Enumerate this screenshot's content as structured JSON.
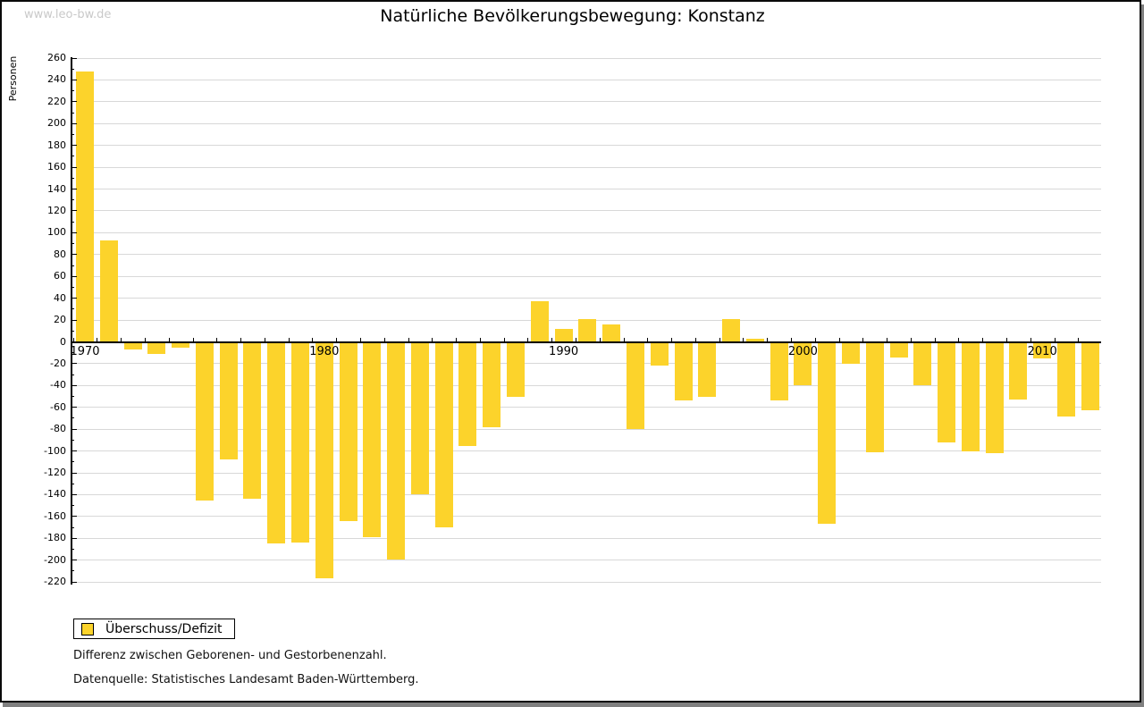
{
  "watermark": "www.leo-bw.de",
  "header": {
    "title": "Natürliche Bevölkerungsbewegung: Konstanz"
  },
  "y_axis": {
    "label": "Personen",
    "min": -220,
    "max": 260,
    "major_step": 20,
    "minor_step": 10
  },
  "x_axis": {
    "tick_labels": [
      "1970",
      "1980",
      "1990",
      "2000",
      "2010"
    ]
  },
  "legend": {
    "label": "Überschuss/Defizit"
  },
  "notes": [
    "Differenz zwischen Geborenen- und Gestorbenenzahl.",
    "Datenquelle: Statistisches Landesamt Baden-Württemberg."
  ],
  "colors": {
    "bar": "#fcd32b",
    "grid": "#d8d8d8",
    "axis": "#000000",
    "watermark": "#c9c9c9",
    "shadow": "#808080"
  },
  "chart_data": {
    "type": "bar",
    "title": "Natürliche Bevölkerungsbewegung: Konstanz",
    "xlabel": "",
    "ylabel": "Personen",
    "ylim": [
      -220,
      260
    ],
    "grid": true,
    "legend_position": "bottom-left",
    "series_name": "Überschuss/Defizit",
    "categories": [
      1970,
      1971,
      1972,
      1973,
      1974,
      1975,
      1976,
      1977,
      1978,
      1979,
      1980,
      1981,
      1982,
      1983,
      1984,
      1985,
      1986,
      1987,
      1988,
      1989,
      1990,
      1991,
      1992,
      1993,
      1994,
      1995,
      1996,
      1997,
      1998,
      1999,
      2000,
      2001,
      2002,
      2003,
      2004,
      2005,
      2006,
      2007,
      2008,
      2009,
      2010,
      2011,
      2012
    ],
    "values": [
      248,
      93,
      -7,
      -11,
      -5,
      -145,
      -108,
      -144,
      -185,
      -184,
      -217,
      -164,
      -179,
      -199,
      -140,
      -170,
      -95,
      -78,
      -50,
      37,
      12,
      21,
      16,
      -80,
      -22,
      -54,
      -50,
      21,
      3,
      -54,
      -40,
      -167,
      -20,
      -101,
      -14,
      -40,
      -92,
      -100,
      -102,
      -53,
      -15,
      -68,
      -63
    ]
  }
}
